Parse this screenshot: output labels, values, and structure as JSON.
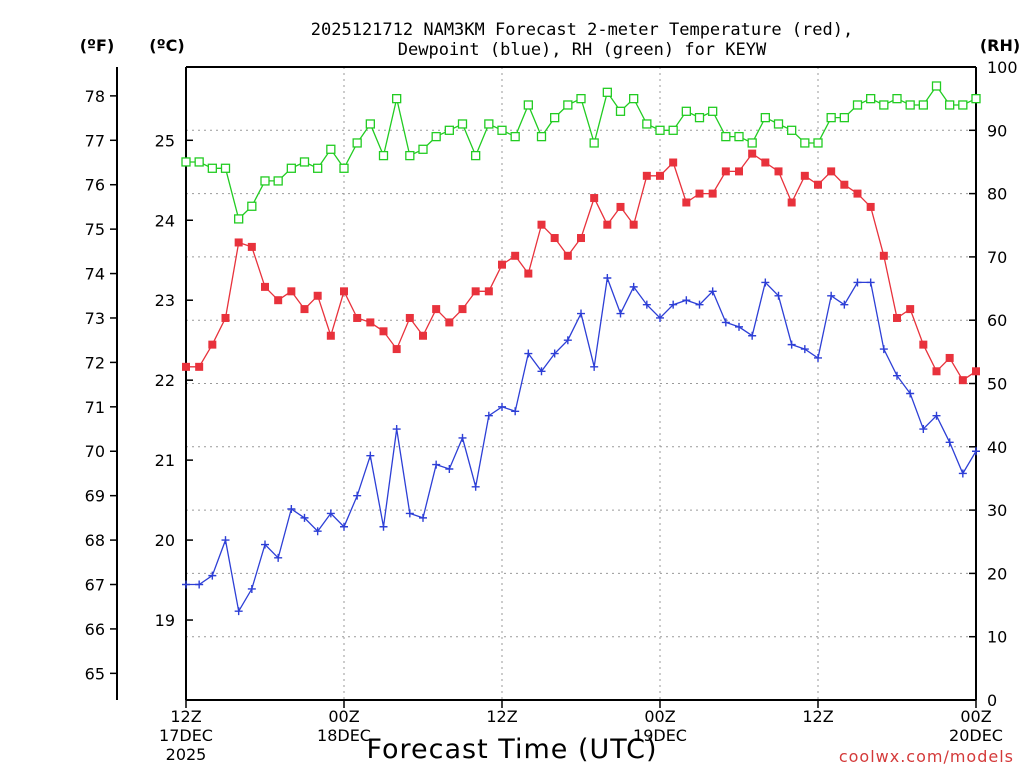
{
  "chart_data": {
    "type": "line",
    "title": [
      "2025121712 NAM3KM Forecast 2-meter Temperature (red),",
      "Dewpoint (blue), RH (green) for KEYW"
    ],
    "xlabel": "Forecast Time (UTC)",
    "credit": "coolwx.com/models",
    "units": {
      "f": "(ºF)",
      "c": "(ºC)",
      "rh": "(RH)"
    },
    "y_f": {
      "range": [
        64.4,
        78.65
      ],
      "ticks": [
        65,
        66,
        67,
        68,
        69,
        70,
        71,
        72,
        73,
        74,
        75,
        76,
        77,
        78
      ]
    },
    "y_c": {
      "ticks": [
        19,
        20,
        21,
        22,
        23,
        24,
        25
      ]
    },
    "y_rh": {
      "range": [
        0,
        100
      ],
      "ticks": [
        0,
        10,
        20,
        30,
        40,
        50,
        60,
        70,
        80,
        90,
        100
      ]
    },
    "x": {
      "range": [
        0,
        60
      ],
      "step_hours": 1
    },
    "x_ticks": [
      {
        "hour": 0,
        "lines": [
          "12Z",
          "17DEC",
          "2025"
        ]
      },
      {
        "hour": 12,
        "lines": [
          "00Z",
          "18DEC"
        ]
      },
      {
        "hour": 24,
        "lines": [
          "12Z"
        ]
      },
      {
        "hour": 36,
        "lines": [
          "00Z",
          "19DEC"
        ]
      },
      {
        "hour": 48,
        "lines": [
          "12Z"
        ]
      },
      {
        "hour": 60,
        "lines": [
          "00Z",
          "20DEC"
        ]
      }
    ],
    "grid": true,
    "series": [
      {
        "name": "Temperature",
        "unit": "F",
        "color": "#e8323c",
        "marker": "filled-square",
        "values": [
          71.9,
          71.9,
          72.4,
          73.0,
          74.7,
          74.6,
          73.7,
          73.4,
          73.6,
          73.2,
          73.5,
          72.6,
          73.6,
          73.0,
          72.9,
          72.7,
          72.3,
          73.0,
          72.6,
          73.2,
          72.9,
          73.2,
          73.6,
          73.6,
          74.2,
          74.4,
          74.0,
          75.1,
          74.8,
          74.4,
          74.8,
          75.7,
          75.1,
          75.5,
          75.1,
          76.2,
          76.2,
          76.5,
          75.6,
          75.8,
          75.8,
          76.3,
          76.3,
          76.7,
          76.5,
          76.3,
          75.6,
          76.2,
          76.0,
          76.3,
          76.0,
          75.8,
          75.5,
          74.4,
          73.0,
          73.2,
          72.4,
          71.8,
          72.1,
          71.6,
          71.8
        ]
      },
      {
        "name": "Dewpoint",
        "unit": "F",
        "color": "#2d3fd6",
        "marker": "plus",
        "values": [
          67.0,
          67.0,
          67.2,
          68.0,
          66.4,
          66.9,
          67.9,
          67.6,
          68.7,
          68.5,
          68.2,
          68.6,
          68.3,
          69.0,
          69.9,
          68.3,
          70.5,
          68.6,
          68.5,
          69.7,
          69.6,
          70.3,
          69.2,
          70.8,
          71.0,
          70.9,
          72.2,
          71.8,
          72.2,
          72.5,
          73.1,
          71.9,
          73.9,
          73.1,
          73.7,
          73.3,
          73.0,
          73.3,
          73.4,
          73.3,
          73.6,
          72.9,
          72.8,
          72.6,
          73.8,
          73.5,
          72.4,
          72.3,
          72.1,
          73.5,
          73.3,
          73.8,
          73.8,
          72.3,
          71.7,
          71.3,
          70.5,
          70.8,
          70.2,
          69.5,
          70.0
        ]
      },
      {
        "name": "RH",
        "unit": "%",
        "color": "#22cc22",
        "marker": "open-square",
        "values": [
          85,
          85,
          84,
          84,
          76,
          78,
          82,
          82,
          84,
          85,
          84,
          87,
          84,
          88,
          91,
          86,
          95,
          86,
          87,
          89,
          90,
          91,
          86,
          91,
          90,
          89,
          94,
          89,
          92,
          94,
          95,
          88,
          96,
          93,
          95,
          91,
          90,
          90,
          93,
          92,
          93,
          89,
          89,
          88,
          92,
          91,
          90,
          88,
          88,
          92,
          92,
          94,
          95,
          94,
          95,
          94,
          94,
          97,
          94,
          94,
          95
        ]
      }
    ]
  }
}
